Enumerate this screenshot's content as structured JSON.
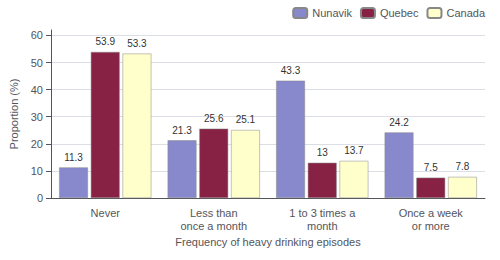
{
  "chart_data": {
    "type": "bar",
    "categories": [
      "Never",
      "Less than\nonce a month",
      "1 to 3 times a\nmonth",
      "Once a week\nor more"
    ],
    "series": [
      {
        "name": "Nunavik",
        "color": "#8888CC",
        "values": [
          11.3,
          21.3,
          43.3,
          24.2
        ]
      },
      {
        "name": "Quebec",
        "color": "#882244",
        "values": [
          53.9,
          25.6,
          13.0,
          7.5
        ]
      },
      {
        "name": "Canada",
        "color": "#FFFFCC",
        "values": [
          53.3,
          25.1,
          13.7,
          7.8
        ]
      }
    ],
    "xlabel": "Frequency of heavy drinking episodes",
    "ylabel": "Proportion (%)",
    "ylim": [
      0,
      62
    ],
    "yticks": [
      0,
      10,
      20,
      30,
      40,
      50,
      60
    ],
    "grid": true,
    "legend": "upper right",
    "data_labels": true
  }
}
